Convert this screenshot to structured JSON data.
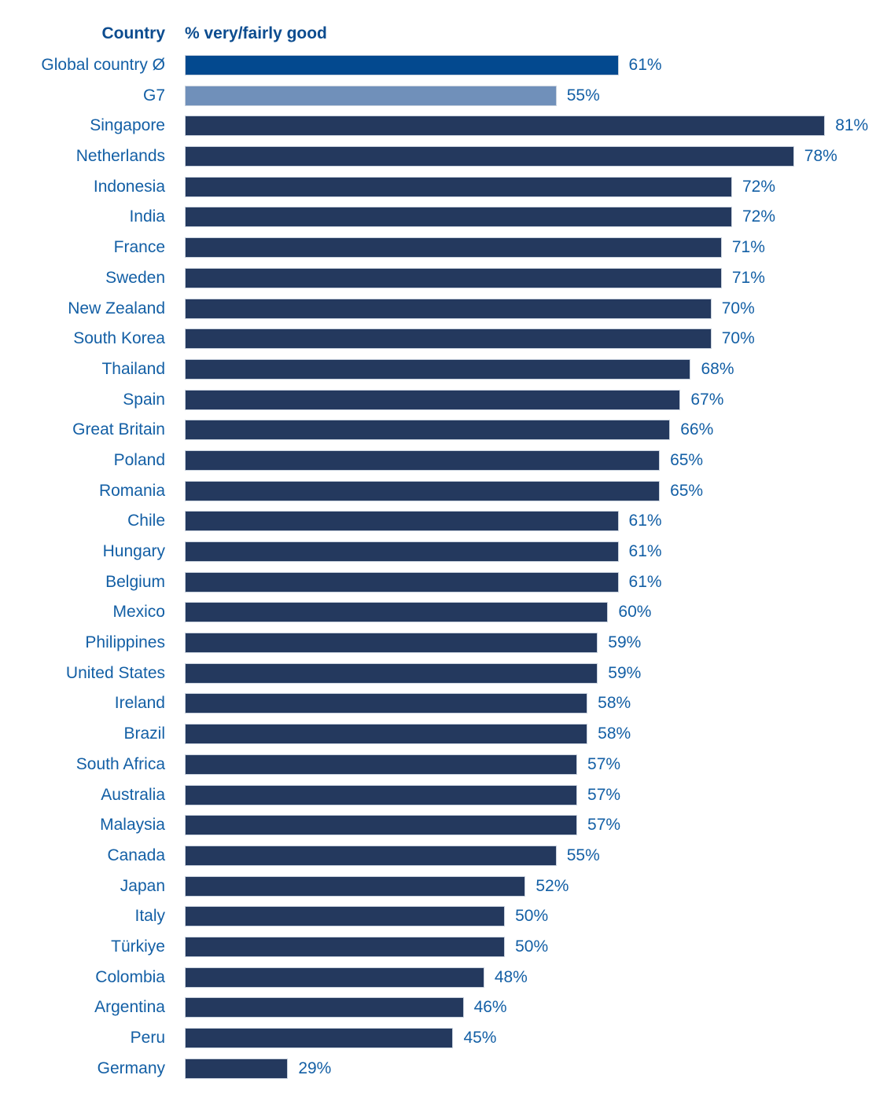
{
  "chart_data": {
    "type": "bar",
    "orientation": "horizontal",
    "headers": {
      "country": "Country",
      "value": "% very/fairly good"
    },
    "unit": "%",
    "value_label_suffix": "%",
    "xlim": [
      19,
      87
    ],
    "grid": false,
    "legend": "none",
    "colors": {
      "global-average": "#03498F",
      "g7": "#7090BA",
      "country": "#24395E",
      "label_text": "#135FA5",
      "header_text": "#0C4C8F"
    },
    "rows": [
      {
        "label": "Global country Ø",
        "value": 61,
        "group": "global-average"
      },
      {
        "label": "G7",
        "value": 55,
        "group": "g7"
      },
      {
        "label": "Singapore",
        "value": 81,
        "group": "country"
      },
      {
        "label": "Netherlands",
        "value": 78,
        "group": "country"
      },
      {
        "label": "Indonesia",
        "value": 72,
        "group": "country"
      },
      {
        "label": "India",
        "value": 72,
        "group": "country"
      },
      {
        "label": "France",
        "value": 71,
        "group": "country"
      },
      {
        "label": "Sweden",
        "value": 71,
        "group": "country"
      },
      {
        "label": "New Zealand",
        "value": 70,
        "group": "country"
      },
      {
        "label": "South Korea",
        "value": 70,
        "group": "country"
      },
      {
        "label": "Thailand",
        "value": 68,
        "group": "country"
      },
      {
        "label": "Spain",
        "value": 67,
        "group": "country"
      },
      {
        "label": "Great Britain",
        "value": 66,
        "group": "country"
      },
      {
        "label": "Poland",
        "value": 65,
        "group": "country"
      },
      {
        "label": "Romania",
        "value": 65,
        "group": "country"
      },
      {
        "label": "Chile",
        "value": 61,
        "group": "country"
      },
      {
        "label": "Hungary",
        "value": 61,
        "group": "country"
      },
      {
        "label": "Belgium",
        "value": 61,
        "group": "country"
      },
      {
        "label": "Mexico",
        "value": 60,
        "group": "country"
      },
      {
        "label": "Philippines",
        "value": 59,
        "group": "country"
      },
      {
        "label": "United States",
        "value": 59,
        "group": "country"
      },
      {
        "label": "Ireland",
        "value": 58,
        "group": "country"
      },
      {
        "label": "Brazil",
        "value": 58,
        "group": "country"
      },
      {
        "label": "South Africa",
        "value": 57,
        "group": "country"
      },
      {
        "label": "Australia",
        "value": 57,
        "group": "country"
      },
      {
        "label": "Malaysia",
        "value": 57,
        "group": "country"
      },
      {
        "label": "Canada",
        "value": 55,
        "group": "country"
      },
      {
        "label": "Japan",
        "value": 52,
        "group": "country"
      },
      {
        "label": "Italy",
        "value": 50,
        "group": "country"
      },
      {
        "label": "Türkiye",
        "value": 50,
        "group": "country"
      },
      {
        "label": "Colombia",
        "value": 48,
        "group": "country"
      },
      {
        "label": "Argentina",
        "value": 46,
        "group": "country"
      },
      {
        "label": "Peru",
        "value": 45,
        "group": "country"
      },
      {
        "label": "Germany",
        "value": 29,
        "group": "country"
      }
    ]
  }
}
